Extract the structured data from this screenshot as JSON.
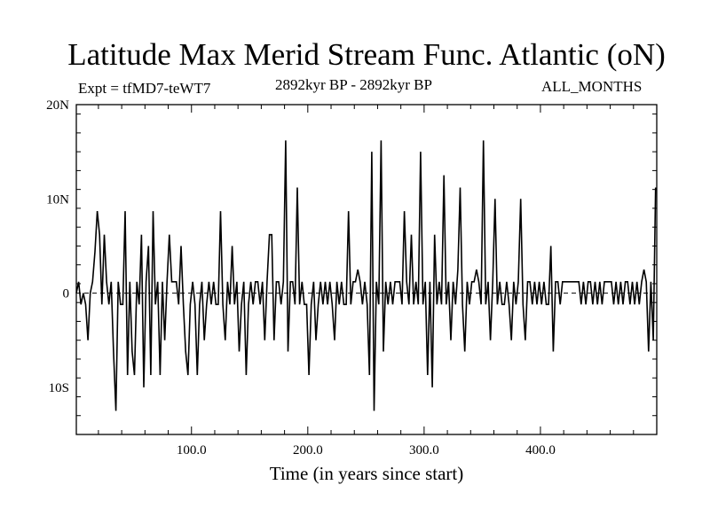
{
  "chart_data": {
    "type": "line",
    "title": "Latitude Max Merid Stream Func. Atlantic (oN)",
    "left_label": "Expt = tfMD7-teWT7",
    "center_label": "2892kyr BP - 2892kyr BP",
    "right_label": "ALL_MONTHS",
    "xlabel": "Time (in years since start)",
    "ylabel": "",
    "xlim": [
      1,
      500
    ],
    "ylim": [
      -15,
      20
    ],
    "x_ticks": [
      {
        "value": 100,
        "label": "100.0"
      },
      {
        "value": 200,
        "label": "200.0"
      },
      {
        "value": 300,
        "label": "300.0"
      },
      {
        "value": 400,
        "label": "400.0"
      }
    ],
    "y_ticks": [
      {
        "value": 20,
        "label": "20N"
      },
      {
        "value": 10,
        "label": "10N"
      },
      {
        "value": 0,
        "label": "0"
      },
      {
        "value": -10,
        "label": "10S"
      }
    ],
    "zero_line": "dashed",
    "grid": false,
    "series": [
      {
        "color": "#000000",
        "values": [
          [
            1,
            0
          ],
          [
            3,
            1.2
          ],
          [
            5,
            -1.2
          ],
          [
            7,
            0
          ],
          [
            9,
            -1.2
          ],
          [
            11,
            -5
          ],
          [
            13,
            0
          ],
          [
            15,
            1.2
          ],
          [
            17,
            4.4
          ],
          [
            19,
            8.7
          ],
          [
            21,
            6.2
          ],
          [
            23,
            -1.2
          ],
          [
            25,
            6.2
          ],
          [
            27,
            1.2
          ],
          [
            29,
            -1.2
          ],
          [
            31,
            1.2
          ],
          [
            33,
            -6.2
          ],
          [
            35,
            -12.5
          ],
          [
            37,
            1.2
          ],
          [
            39,
            -1.2
          ],
          [
            41,
            -1.2
          ],
          [
            43,
            8.7
          ],
          [
            45,
            -8.7
          ],
          [
            47,
            1.2
          ],
          [
            49,
            -6.2
          ],
          [
            51,
            -8.7
          ],
          [
            53,
            1.2
          ],
          [
            55,
            -1.2
          ],
          [
            57,
            6.2
          ],
          [
            59,
            -10
          ],
          [
            61,
            1.2
          ],
          [
            63,
            5
          ],
          [
            65,
            -8.7
          ],
          [
            67,
            8.7
          ],
          [
            69,
            -1.2
          ],
          [
            71,
            1.2
          ],
          [
            73,
            -8.7
          ],
          [
            75,
            1.2
          ],
          [
            77,
            -5
          ],
          [
            79,
            1.2
          ],
          [
            81,
            6.2
          ],
          [
            83,
            1.2
          ],
          [
            85,
            1.2
          ],
          [
            87,
            1.2
          ],
          [
            89,
            -1.2
          ],
          [
            91,
            5
          ],
          [
            93,
            -1.2
          ],
          [
            95,
            -6.2
          ],
          [
            97,
            -8.7
          ],
          [
            99,
            -1.2
          ],
          [
            101,
            1.2
          ],
          [
            103,
            -1.2
          ],
          [
            105,
            -8.7
          ],
          [
            107,
            -1.2
          ],
          [
            109,
            1.2
          ],
          [
            111,
            -5
          ],
          [
            113,
            -1.2
          ],
          [
            115,
            1.2
          ],
          [
            117,
            -1.2
          ],
          [
            119,
            1.2
          ],
          [
            121,
            -1.2
          ],
          [
            123,
            -1.2
          ],
          [
            125,
            8.7
          ],
          [
            127,
            -1.2
          ],
          [
            129,
            -5
          ],
          [
            131,
            1.2
          ],
          [
            133,
            -1.2
          ],
          [
            135,
            5
          ],
          [
            137,
            -1.2
          ],
          [
            139,
            1.2
          ],
          [
            141,
            -6.2
          ],
          [
            143,
            -1.2
          ],
          [
            145,
            1.2
          ],
          [
            147,
            -8.7
          ],
          [
            149,
            -1.2
          ],
          [
            151,
            1.2
          ],
          [
            153,
            -1.2
          ],
          [
            155,
            1.2
          ],
          [
            157,
            1.2
          ],
          [
            159,
            -1.2
          ],
          [
            161,
            1.2
          ],
          [
            163,
            -5
          ],
          [
            165,
            1.2
          ],
          [
            167,
            6.2
          ],
          [
            169,
            6.2
          ],
          [
            171,
            -5
          ],
          [
            173,
            1.2
          ],
          [
            175,
            1.2
          ],
          [
            177,
            -1.2
          ],
          [
            179,
            1.2
          ],
          [
            181,
            16.2
          ],
          [
            183,
            -6.2
          ],
          [
            185,
            1.2
          ],
          [
            187,
            1.2
          ],
          [
            189,
            -1.2
          ],
          [
            191,
            11.2
          ],
          [
            193,
            -1.2
          ],
          [
            195,
            1.2
          ],
          [
            197,
            -1.2
          ],
          [
            199,
            -1.2
          ],
          [
            201,
            -8.7
          ],
          [
            203,
            -1.2
          ],
          [
            205,
            1.2
          ],
          [
            207,
            -5
          ],
          [
            209,
            -1.2
          ],
          [
            211,
            1.2
          ],
          [
            213,
            -1.2
          ],
          [
            215,
            1.2
          ],
          [
            217,
            -1.2
          ],
          [
            219,
            1.2
          ],
          [
            221,
            -1.2
          ],
          [
            223,
            -5
          ],
          [
            225,
            1.2
          ],
          [
            227,
            -1.2
          ],
          [
            229,
            1.2
          ],
          [
            231,
            -1.2
          ],
          [
            233,
            -1.2
          ],
          [
            235,
            8.7
          ],
          [
            237,
            -1.2
          ],
          [
            239,
            1.2
          ],
          [
            241,
            1.2
          ],
          [
            243,
            2.5
          ],
          [
            245,
            1.2
          ],
          [
            247,
            -1.2
          ],
          [
            249,
            1.2
          ],
          [
            251,
            -1.2
          ],
          [
            253,
            -8.7
          ],
          [
            255,
            15
          ],
          [
            257,
            -12.5
          ],
          [
            259,
            1.2
          ],
          [
            261,
            -1.2
          ],
          [
            263,
            16.2
          ],
          [
            265,
            -6.2
          ],
          [
            267,
            1.2
          ],
          [
            269,
            -1.2
          ],
          [
            271,
            1.2
          ],
          [
            273,
            -1.2
          ],
          [
            275,
            1.2
          ],
          [
            277,
            1.2
          ],
          [
            279,
            1.2
          ],
          [
            281,
            -1.2
          ],
          [
            283,
            8.7
          ],
          [
            285,
            1.2
          ],
          [
            287,
            -1.2
          ],
          [
            289,
            6.2
          ],
          [
            291,
            -1.2
          ],
          [
            293,
            1.2
          ],
          [
            295,
            -1.2
          ],
          [
            297,
            15
          ],
          [
            299,
            -1.2
          ],
          [
            301,
            1.2
          ],
          [
            303,
            -8.7
          ],
          [
            305,
            1.2
          ],
          [
            307,
            -10
          ],
          [
            309,
            6.2
          ],
          [
            311,
            -1.2
          ],
          [
            313,
            1.2
          ],
          [
            315,
            -1.2
          ],
          [
            317,
            12.5
          ],
          [
            319,
            -1.2
          ],
          [
            321,
            1.2
          ],
          [
            323,
            -5
          ],
          [
            325,
            1.2
          ],
          [
            327,
            -1.2
          ],
          [
            329,
            2.5
          ],
          [
            331,
            11.2
          ],
          [
            333,
            -1.2
          ],
          [
            335,
            -6.2
          ],
          [
            337,
            1.2
          ],
          [
            339,
            -1.2
          ],
          [
            341,
            1.2
          ],
          [
            343,
            1.2
          ],
          [
            345,
            2.5
          ],
          [
            347,
            1.2
          ],
          [
            349,
            -1.2
          ],
          [
            351,
            16.2
          ],
          [
            353,
            -1.2
          ],
          [
            355,
            1.2
          ],
          [
            357,
            -5
          ],
          [
            359,
            1.2
          ],
          [
            361,
            10
          ],
          [
            363,
            -1.2
          ],
          [
            365,
            1.2
          ],
          [
            367,
            -1.2
          ],
          [
            369,
            -1.2
          ],
          [
            371,
            1.2
          ],
          [
            373,
            -1.2
          ],
          [
            375,
            -5
          ],
          [
            377,
            1.2
          ],
          [
            379,
            -1.2
          ],
          [
            381,
            1.2
          ],
          [
            383,
            10
          ],
          [
            385,
            -1.2
          ],
          [
            387,
            -5
          ],
          [
            389,
            1.2
          ],
          [
            391,
            1.2
          ],
          [
            393,
            -1.2
          ],
          [
            395,
            1.2
          ],
          [
            397,
            -1.2
          ],
          [
            399,
            1.2
          ],
          [
            401,
            -1.2
          ],
          [
            403,
            1.2
          ],
          [
            405,
            -1.2
          ],
          [
            407,
            -1.2
          ],
          [
            409,
            5
          ],
          [
            411,
            -6.2
          ],
          [
            413,
            1.2
          ],
          [
            415,
            1.2
          ],
          [
            417,
            -1.2
          ],
          [
            419,
            1.2
          ],
          [
            421,
            1.2
          ],
          [
            423,
            1.2
          ],
          [
            425,
            1.2
          ],
          [
            427,
            1.2
          ],
          [
            429,
            1.2
          ],
          [
            431,
            1.2
          ],
          [
            433,
            1.2
          ],
          [
            435,
            -1.2
          ],
          [
            437,
            1.2
          ],
          [
            439,
            -1.2
          ],
          [
            441,
            1.2
          ],
          [
            443,
            1.2
          ],
          [
            445,
            -1.2
          ],
          [
            447,
            1.2
          ],
          [
            449,
            -1.2
          ],
          [
            451,
            1.2
          ],
          [
            453,
            -1.2
          ],
          [
            455,
            1.2
          ],
          [
            457,
            1.2
          ],
          [
            459,
            1.2
          ],
          [
            461,
            1.2
          ],
          [
            463,
            -1.2
          ],
          [
            465,
            1.2
          ],
          [
            467,
            -1.2
          ],
          [
            469,
            1.2
          ],
          [
            471,
            -1.2
          ],
          [
            473,
            1.2
          ],
          [
            475,
            1.2
          ],
          [
            477,
            -1.2
          ],
          [
            479,
            1.2
          ],
          [
            481,
            -1.2
          ],
          [
            483,
            1.2
          ],
          [
            485,
            -1.2
          ],
          [
            487,
            1.2
          ],
          [
            489,
            2.5
          ],
          [
            491,
            1.2
          ],
          [
            493,
            -6.2
          ],
          [
            495,
            1.2
          ],
          [
            497,
            -5
          ],
          [
            499,
            11.2
          ]
        ]
      }
    ]
  }
}
